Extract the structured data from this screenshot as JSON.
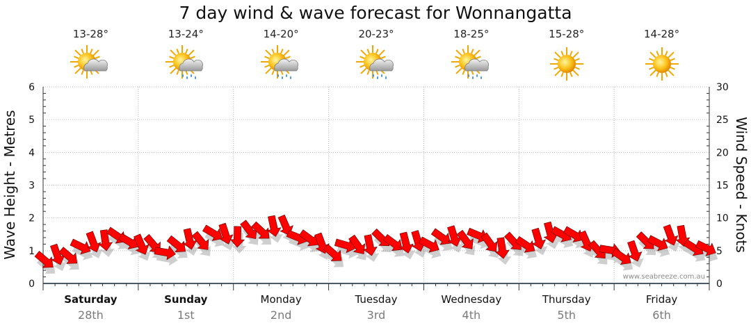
{
  "title": "7 day wind & wave forecast for Wonnangatta",
  "days": [
    {
      "name": "Saturday",
      "date": "28th",
      "temp": "13-28°",
      "icon": "sun-cloud-icon",
      "bold": true
    },
    {
      "name": "Sunday",
      "date": "1st",
      "temp": "13-24°",
      "icon": "sun-cloud-rain-icon",
      "bold": true
    },
    {
      "name": "Monday",
      "date": "2nd",
      "temp": "14-20°",
      "icon": "sun-cloud-rain-icon",
      "bold": false
    },
    {
      "name": "Tuesday",
      "date": "3rd",
      "temp": "20-23°",
      "icon": "sun-cloud-rain-icon",
      "bold": false
    },
    {
      "name": "Wednesday",
      "date": "4th",
      "temp": "18-25°",
      "icon": "sun-cloud-rain-icon",
      "bold": false
    },
    {
      "name": "Thursday",
      "date": "5th",
      "temp": "15-28°",
      "icon": "sun-icon",
      "bold": false
    },
    {
      "name": "Friday",
      "date": "6th",
      "temp": "14-28°",
      "icon": "sun-icon",
      "bold": false
    }
  ],
  "credit": "www.seabreeze.com.au",
  "colors": {
    "arrow": "#ff0000",
    "arrow_stroke": "#5a0000",
    "grid": "#b5b5b5",
    "axis": "#333333"
  },
  "chart_data": {
    "type": "line",
    "series_name": "Wind speed (knots) with direction arrows",
    "left_axis": {
      "label": "Wave Height - Metres",
      "range": [
        0,
        6
      ],
      "ticks": [
        0,
        1,
        2,
        3,
        4,
        5,
        6
      ]
    },
    "right_axis": {
      "label": "Wind Speed - Knots",
      "range": [
        0,
        30
      ],
      "ticks": [
        0,
        5,
        10,
        15,
        20,
        25,
        30
      ]
    },
    "x_unit": "days",
    "x": [
      0.05,
      0.35,
      0.65,
      0.95,
      1.25,
      1.55,
      1.85,
      2.15,
      2.45,
      2.75,
      3.05,
      3.35,
      3.65,
      3.95,
      4.25,
      4.55,
      4.85,
      5.15,
      5.45,
      5.75,
      6.05,
      6.35,
      6.65,
      6.95
    ],
    "wind_knots": [
      3.5,
      5,
      7,
      6.5,
      5,
      6.5,
      7.5,
      7.5,
      9,
      7,
      5,
      6,
      6.5,
      6,
      7,
      7,
      5.5,
      6.5,
      8,
      6,
      4,
      6,
      7.5,
      5
    ],
    "direction_deg": [
      40,
      50,
      60,
      45,
      35,
      50,
      60,
      70,
      55,
      45,
      40,
      50,
      60,
      55,
      45,
      50,
      55,
      60,
      50,
      40,
      35,
      50,
      60,
      45
    ]
  }
}
